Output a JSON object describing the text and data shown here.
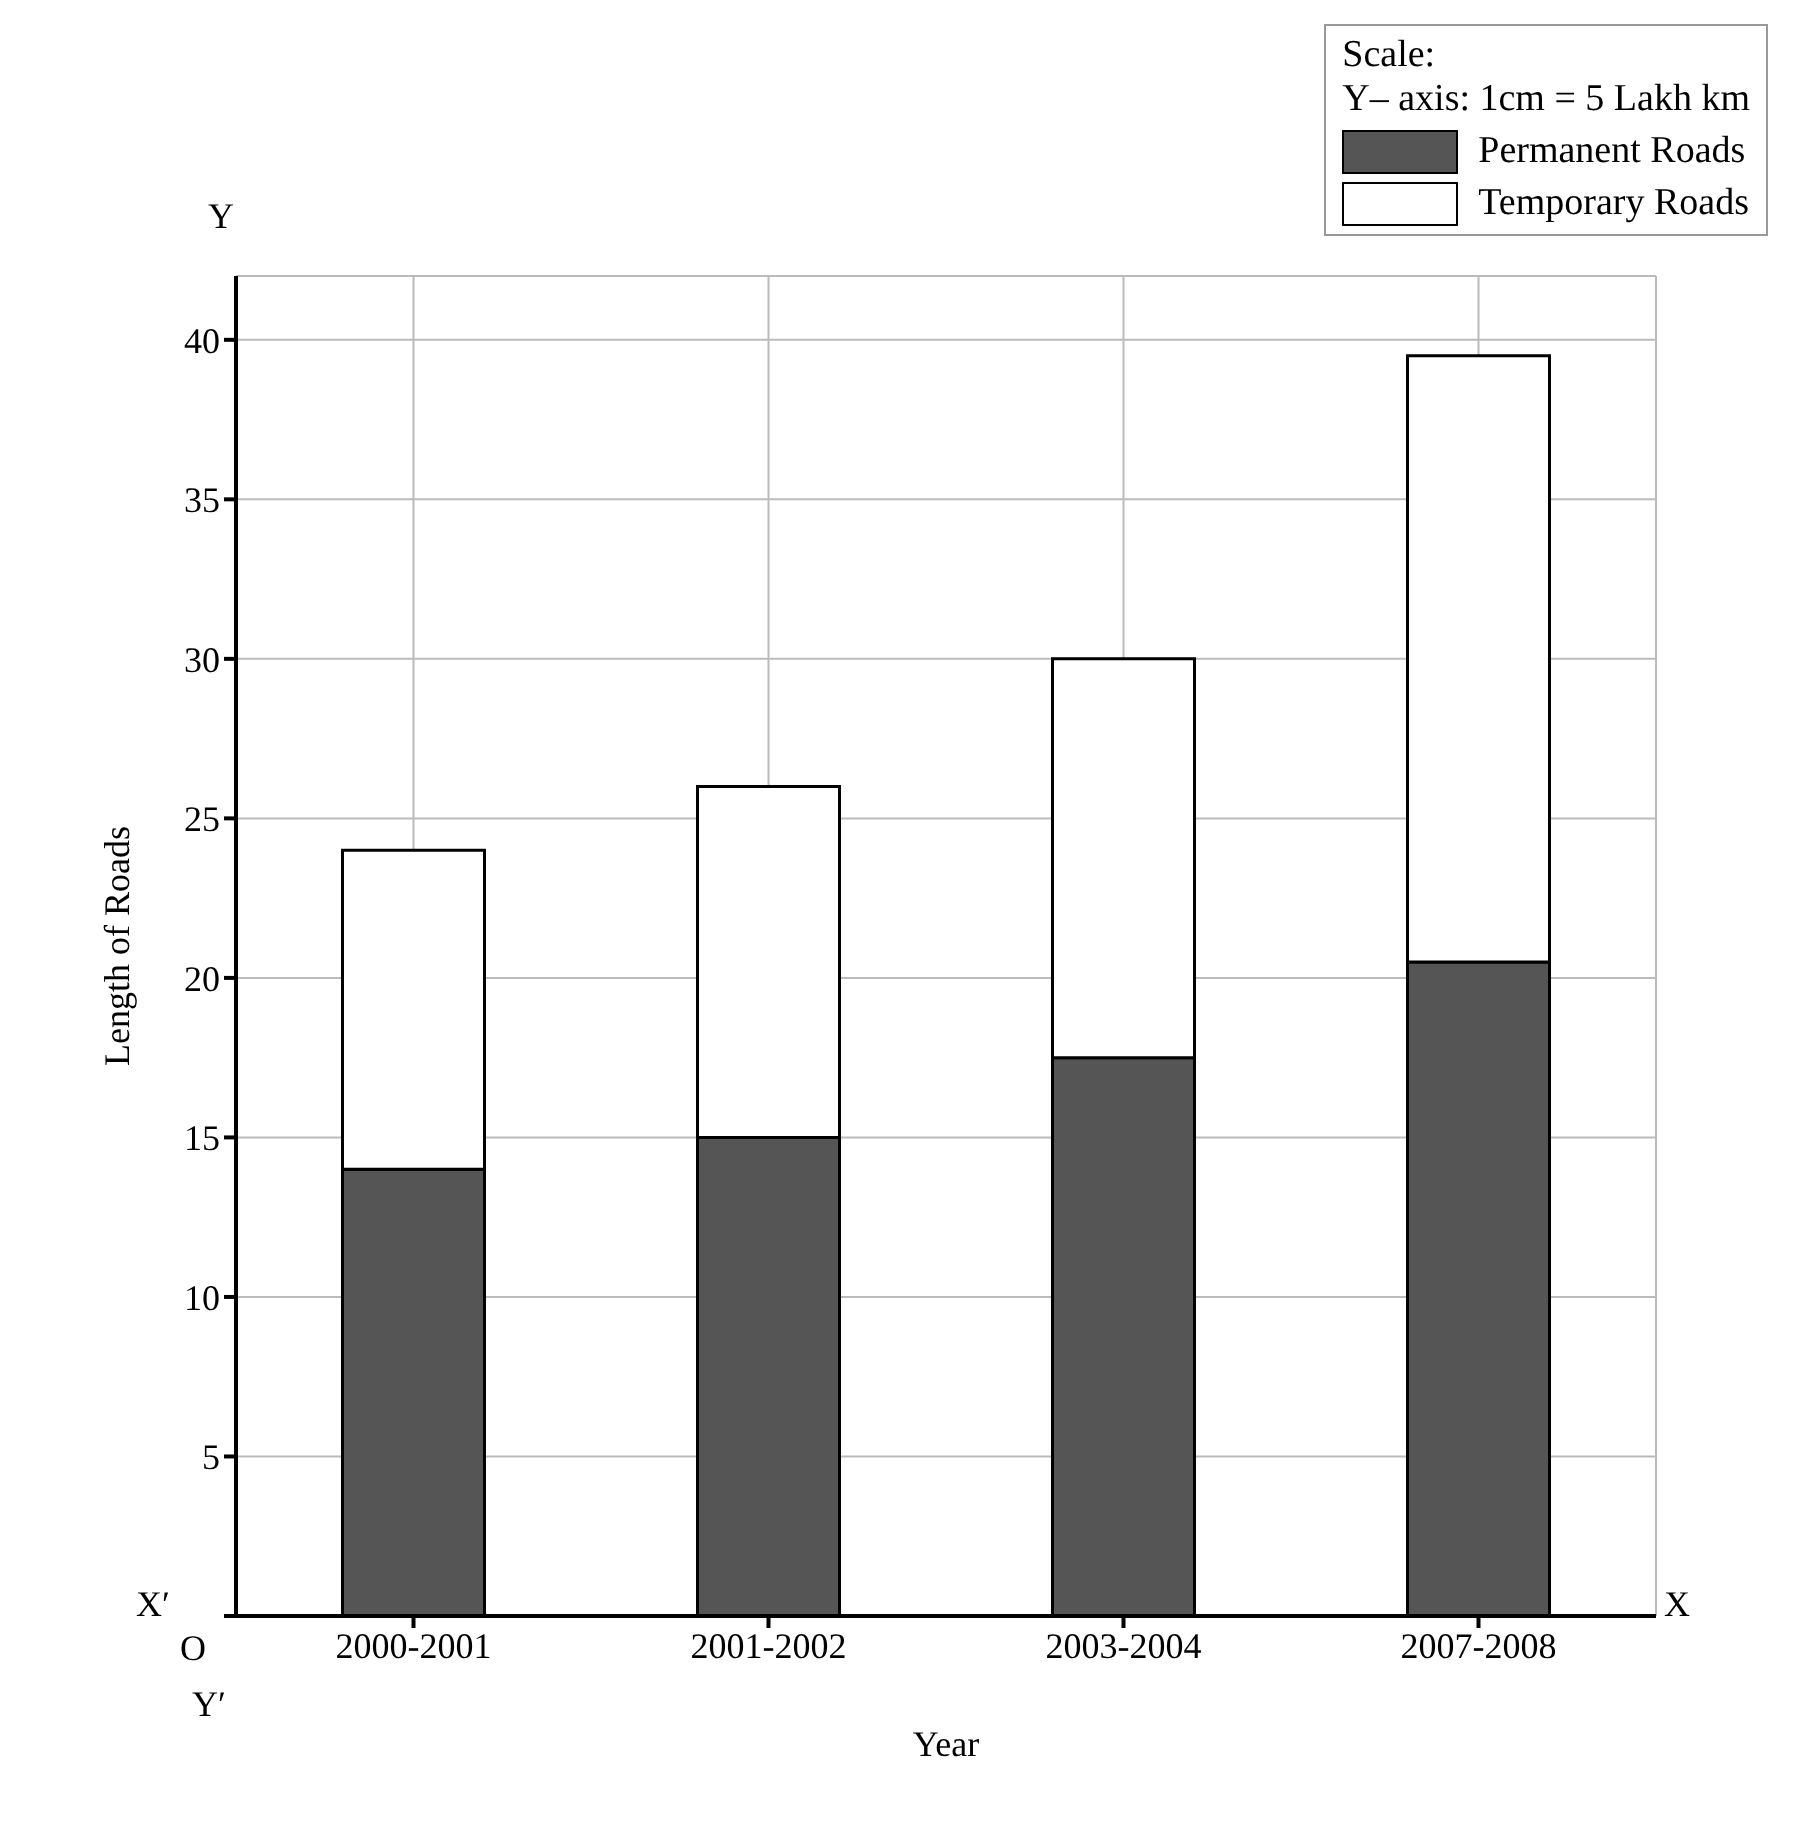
{
  "chart_data": {
    "type": "bar",
    "stacked": true,
    "xlabel": "Year",
    "ylabel": "Length of Roads",
    "categories": [
      "2000-2001",
      "2001-2002",
      "2003-2004",
      "2007-2008"
    ],
    "series": [
      {
        "name": "Permanent Roads",
        "color": "#555555",
        "values": [
          14,
          15,
          17.5,
          20.5
        ]
      },
      {
        "name": "Temporary Roads",
        "color": "#ffffff",
        "values": [
          10,
          11,
          12.5,
          19
        ]
      }
    ],
    "ylim": [
      0,
      42
    ],
    "yticks": [
      {
        "value": 0,
        "label": null
      },
      5,
      10,
      15,
      20,
      25,
      30,
      35,
      40
    ],
    "grid": true,
    "legend": "top right",
    "annotations": [
      "Scale:",
      "Y– axis: 1cm = 5 Lakh km",
      "Y",
      "X′",
      "X",
      "O",
      "Y′"
    ]
  }
}
